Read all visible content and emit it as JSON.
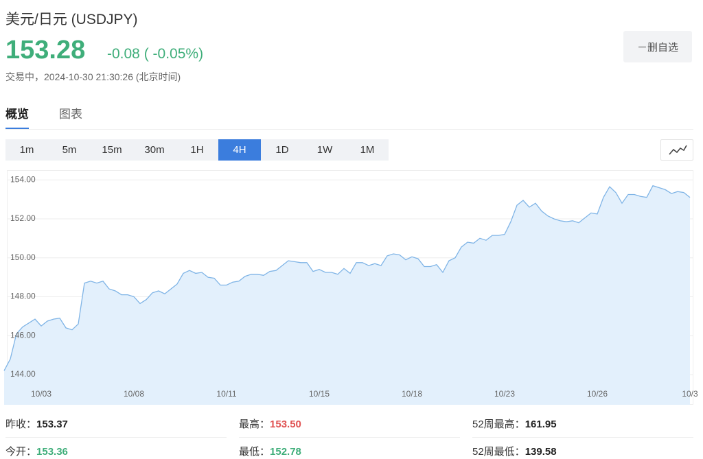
{
  "header": {
    "title": "美元/日元 (USDJPY)",
    "price": "153.28",
    "change": "-0.08 ( -0.05%)",
    "status": "交易中，2024-10-30 21:30:26 (北京时间)",
    "button": "－删自选"
  },
  "tabs": {
    "items": [
      "概览",
      "图表"
    ],
    "active": 0
  },
  "intervals": {
    "items": [
      "1m",
      "5m",
      "15m",
      "30m",
      "1H",
      "4H",
      "1D",
      "1W",
      "1M"
    ],
    "active": 5
  },
  "chart_data": {
    "type": "area",
    "color": "#7fb4e6",
    "fill": "#e3f0fc",
    "grid": true,
    "categories": [
      null,
      null,
      null,
      null,
      null,
      null,
      "10/03",
      null,
      null,
      null,
      null,
      null,
      null,
      null,
      null,
      null,
      null,
      null,
      null,
      null,
      null,
      "10/08",
      null,
      null,
      null,
      null,
      null,
      null,
      null,
      null,
      null,
      null,
      null,
      null,
      null,
      null,
      "10/11",
      null,
      null,
      null,
      null,
      null,
      null,
      null,
      null,
      null,
      null,
      null,
      null,
      null,
      null,
      "10/15",
      null,
      null,
      null,
      null,
      null,
      null,
      null,
      null,
      null,
      null,
      null,
      null,
      null,
      null,
      "10/18",
      null,
      null,
      null,
      null,
      null,
      null,
      null,
      null,
      null,
      null,
      null,
      null,
      null,
      null,
      "10/23",
      null,
      null,
      null,
      null,
      null,
      null,
      null,
      null,
      null,
      null,
      null,
      null,
      null,
      null,
      "10/26",
      null,
      null,
      null,
      null,
      null,
      null,
      null,
      null,
      null,
      null,
      null,
      null,
      null,
      null,
      "10/3"
    ],
    "values": [
      144.2,
      144.8,
      146.1,
      146.45,
      146.65,
      146.85,
      146.5,
      146.75,
      146.85,
      146.9,
      146.4,
      146.3,
      146.6,
      148.7,
      148.8,
      148.7,
      148.8,
      148.4,
      148.3,
      148.1,
      148.1,
      148.0,
      147.65,
      147.85,
      148.2,
      148.3,
      148.15,
      148.4,
      148.65,
      149.2,
      149.35,
      149.2,
      149.25,
      149.0,
      148.95,
      148.6,
      148.6,
      148.75,
      148.8,
      149.05,
      149.15,
      149.15,
      149.1,
      149.3,
      149.35,
      149.6,
      149.85,
      149.8,
      149.75,
      149.75,
      149.3,
      149.4,
      149.25,
      149.25,
      149.15,
      149.45,
      149.2,
      149.75,
      149.75,
      149.6,
      149.7,
      149.6,
      150.1,
      150.2,
      150.15,
      149.9,
      150.05,
      149.95,
      149.55,
      149.55,
      149.65,
      149.25,
      149.85,
      150.0,
      150.55,
      150.8,
      150.75,
      151.0,
      150.9,
      151.15,
      151.15,
      151.2,
      151.85,
      152.7,
      152.95,
      152.6,
      152.8,
      152.4,
      152.15,
      152.0,
      151.9,
      151.85,
      151.9,
      151.8,
      152.05,
      152.3,
      152.25,
      153.1,
      153.65,
      153.35,
      152.8,
      153.25,
      153.25,
      153.15,
      153.1,
      153.7,
      153.6,
      153.5,
      153.3,
      153.4,
      153.35,
      153.1
    ],
    "ylim": [
      142.45,
      154.5
    ],
    "yticks": [
      {
        "value": 144,
        "label": "144.00"
      },
      {
        "value": 146,
        "label": "146.00"
      },
      {
        "value": 148,
        "label": "148.00"
      },
      {
        "value": 150,
        "label": "150.00"
      },
      {
        "value": 152,
        "label": "152.00"
      },
      {
        "value": 154,
        "label": "154.00"
      }
    ]
  },
  "stats": [
    {
      "label": "昨收：",
      "value": "153.37",
      "color": "#222222"
    },
    {
      "label": "最高：",
      "value": "153.50",
      "color": "#e05252"
    },
    {
      "label": "52周最高：",
      "value": "161.95",
      "color": "#222222"
    },
    {
      "label": "今开：",
      "value": "153.36",
      "color": "#3fae7a"
    },
    {
      "label": "最低：",
      "value": "152.78",
      "color": "#3fae7a"
    },
    {
      "label": "52周最低：",
      "value": "139.58",
      "color": "#222222"
    }
  ]
}
